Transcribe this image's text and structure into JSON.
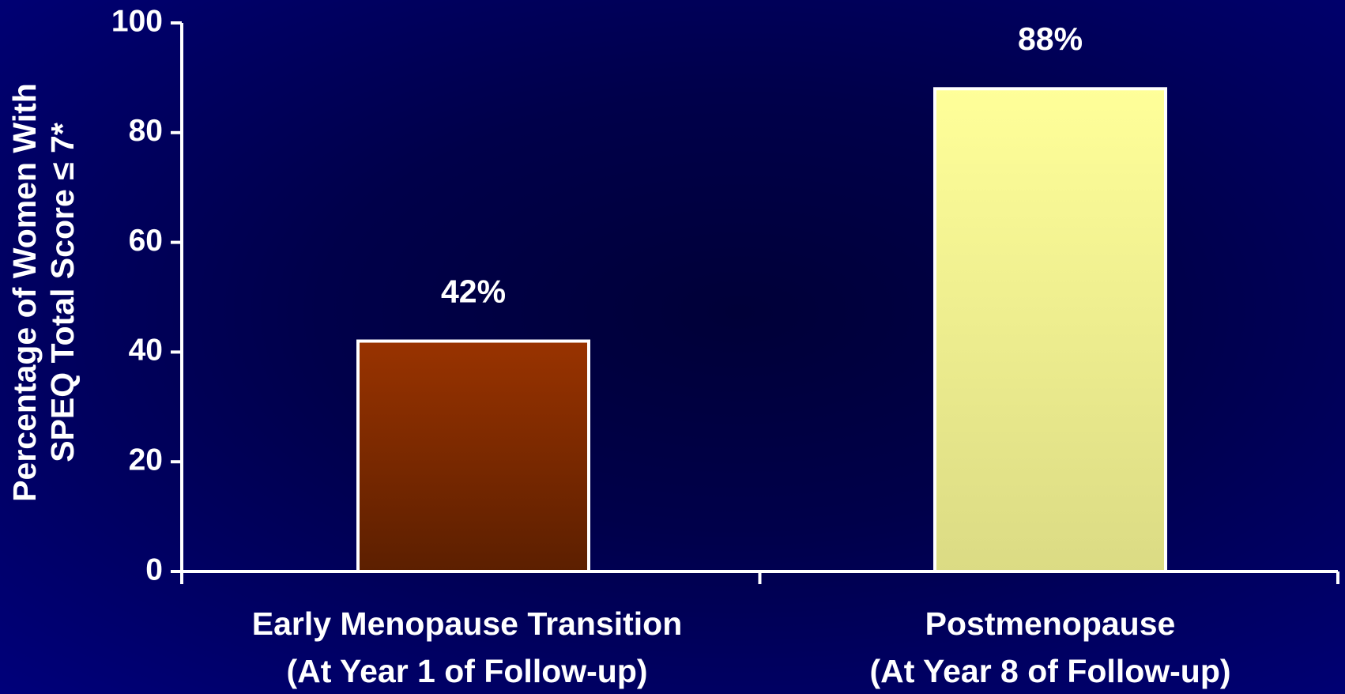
{
  "chart_data": {
    "type": "bar",
    "ylabel": [
      "Percentage of Women With",
      "SPEQ Total Score ≤ 7*"
    ],
    "categories": [
      [
        "Early Menopause Transition",
        "(At Year 1 of Follow-up)"
      ],
      [
        "Postmenopause",
        "(At Year 8 of Follow-up)"
      ]
    ],
    "values": [
      42,
      88
    ],
    "value_labels": [
      "42%",
      "88%"
    ],
    "colors": [
      "#993300",
      "#ffff99"
    ],
    "ylim": [
      0,
      100
    ],
    "yticks": [
      0,
      20,
      40,
      60,
      80,
      100
    ],
    "grid": false
  }
}
